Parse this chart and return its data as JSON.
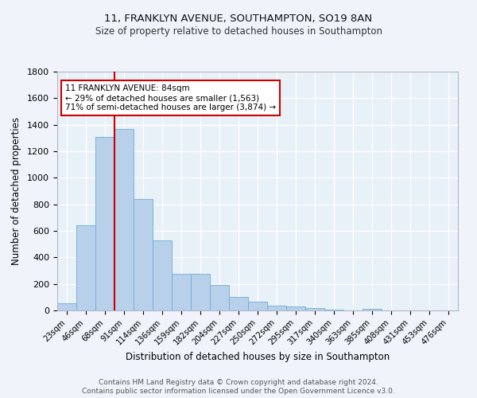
{
  "title1": "11, FRANKLYN AVENUE, SOUTHAMPTON, SO19 8AN",
  "title2": "Size of property relative to detached houses in Southampton",
  "xlabel": "Distribution of detached houses by size in Southampton",
  "ylabel": "Number of detached properties",
  "categories": [
    "23sqm",
    "46sqm",
    "68sqm",
    "91sqm",
    "114sqm",
    "136sqm",
    "159sqm",
    "182sqm",
    "204sqm",
    "227sqm",
    "250sqm",
    "272sqm",
    "295sqm",
    "317sqm",
    "340sqm",
    "363sqm",
    "385sqm",
    "408sqm",
    "431sqm",
    "453sqm",
    "476sqm"
  ],
  "values": [
    55,
    645,
    1310,
    1370,
    840,
    530,
    275,
    275,
    190,
    105,
    65,
    35,
    30,
    18,
    7,
    2,
    12,
    0,
    0,
    0,
    0
  ],
  "bar_color": "#b8d0ea",
  "bar_edge_color": "#6baed6",
  "bg_color": "#e8f0f8",
  "grid_color": "#ffffff",
  "vline_color": "#cc0000",
  "annotation_box_color": "#cc0000",
  "annotation_box_bg": "#ffffff",
  "ylim": [
    0,
    1800
  ],
  "yticks": [
    0,
    200,
    400,
    600,
    800,
    1000,
    1200,
    1400,
    1600,
    1800
  ],
  "footer1": "Contains HM Land Registry data © Crown copyright and database right 2024.",
  "footer2": "Contains public sector information licensed under the Open Government Licence v3.0."
}
